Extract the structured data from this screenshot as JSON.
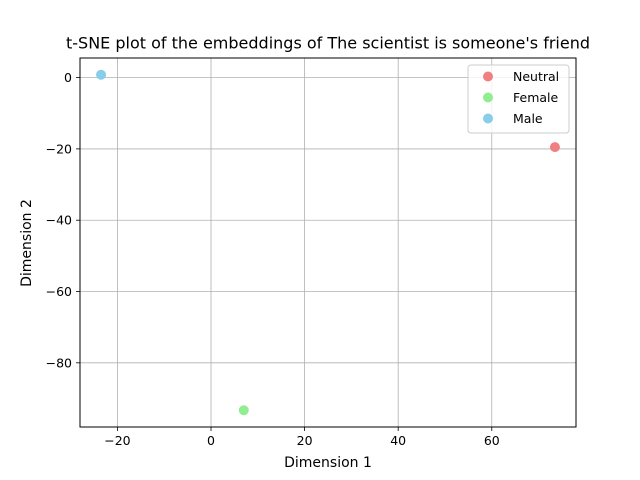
{
  "chart_data": {
    "type": "scatter",
    "title": "t-SNE plot of the embeddings of The scientist is someone's friend",
    "xlabel": "Dimension 1",
    "ylabel": "Dimension 2",
    "xlim": [
      -28,
      78
    ],
    "ylim": [
      -98,
      5.5
    ],
    "xticks": [
      -20,
      0,
      20,
      40,
      60
    ],
    "yticks": [
      0,
      -20,
      -40,
      -60,
      -80
    ],
    "xtick_labels": [
      "−20",
      "0",
      "20",
      "40",
      "60"
    ],
    "ytick_labels": [
      "0",
      "−20",
      "−40",
      "−60",
      "−80"
    ],
    "grid": true,
    "legend_position": "top-right",
    "series": [
      {
        "name": "Neutral",
        "color": "#f08080",
        "points": [
          {
            "x": 73.5,
            "y": -19.5
          }
        ]
      },
      {
        "name": "Female",
        "color": "#90ee90",
        "points": [
          {
            "x": 7,
            "y": -93.3
          }
        ]
      },
      {
        "name": "Male",
        "color": "#87ceeb",
        "points": [
          {
            "x": -23.5,
            "y": 0.8
          }
        ]
      }
    ]
  }
}
